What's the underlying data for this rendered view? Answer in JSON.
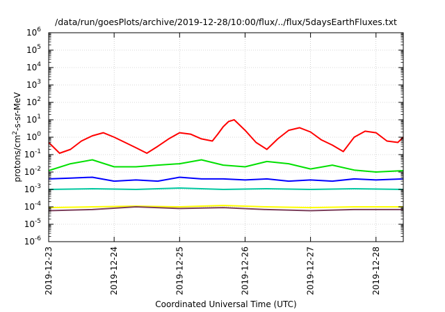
{
  "chart_data": {
    "type": "line",
    "title": "/data/run/goesPlots/archive/2019-12-28/10:00/flux/../flux/5daysEarthFluxes.txt",
    "xlabel": "Coordinated Universal Time (UTC)",
    "ylabel_base": "protons/cm",
    "ylabel_sup": "2",
    "ylabel_rest": "-s-sr-MeV",
    "yscale": "log",
    "ylim": [
      1e-06,
      1000000.0
    ],
    "xlim": [
      "2019-12-23T00:00",
      "2019-12-28T10:00"
    ],
    "grid": true,
    "y_ticks": [
      {
        "exp": "-6"
      },
      {
        "exp": "-5"
      },
      {
        "exp": "-4"
      },
      {
        "exp": "-3"
      },
      {
        "exp": "-2"
      },
      {
        "exp": "-1"
      },
      {
        "exp": "0"
      },
      {
        "exp": "1"
      },
      {
        "exp": "2"
      },
      {
        "exp": "3"
      },
      {
        "exp": "4"
      },
      {
        "exp": "5"
      },
      {
        "exp": "6"
      }
    ],
    "y_tick_base": "10",
    "x_ticks": [
      "2019-12-23",
      "2019-12-24",
      "2019-12-25",
      "2019-12-26",
      "2019-12-27",
      "2019-12-28"
    ],
    "series": [
      {
        "color": "#ff0000",
        "time_hours": [
          0,
          4,
          8,
          12,
          16,
          20,
          24,
          28,
          32,
          36,
          40,
          44,
          48,
          52,
          56,
          60,
          62,
          64,
          66,
          68,
          72,
          76,
          80,
          84,
          88,
          92,
          96,
          100,
          104,
          108,
          112,
          116,
          120,
          124,
          128,
          130
        ],
        "values": [
          0.5,
          0.12,
          0.2,
          0.6,
          1.2,
          1.8,
          1.0,
          0.5,
          0.25,
          0.12,
          0.3,
          0.8,
          1.8,
          1.5,
          0.8,
          0.6,
          1.5,
          4.0,
          8.0,
          10.0,
          2.5,
          0.5,
          0.2,
          0.8,
          2.5,
          3.5,
          2.0,
          0.7,
          0.35,
          0.15,
          1.0,
          2.2,
          1.8,
          0.6,
          0.5,
          1.0
        ]
      },
      {
        "color": "#00e000",
        "time_hours": [
          0,
          8,
          16,
          24,
          32,
          40,
          48,
          56,
          64,
          72,
          80,
          88,
          96,
          104,
          112,
          120,
          130
        ],
        "values": [
          0.012,
          0.03,
          0.05,
          0.02,
          0.02,
          0.025,
          0.03,
          0.05,
          0.025,
          0.02,
          0.04,
          0.03,
          0.015,
          0.025,
          0.013,
          0.01,
          0.012
        ]
      },
      {
        "color": "#0000ff",
        "time_hours": [
          0,
          8,
          16,
          24,
          32,
          40,
          48,
          56,
          64,
          72,
          80,
          88,
          96,
          104,
          112,
          120,
          130
        ],
        "values": [
          0.004,
          0.0045,
          0.005,
          0.003,
          0.0035,
          0.003,
          0.005,
          0.004,
          0.004,
          0.0035,
          0.004,
          0.003,
          0.0035,
          0.003,
          0.004,
          0.0035,
          0.004
        ]
      },
      {
        "color": "#00c8a0",
        "time_hours": [
          0,
          16,
          32,
          48,
          64,
          80,
          96,
          112,
          130
        ],
        "values": [
          0.001,
          0.0011,
          0.001,
          0.0012,
          0.001,
          0.0011,
          0.001,
          0.0011,
          0.001
        ]
      },
      {
        "color": "#ffff00",
        "time_hours": [
          0,
          16,
          32,
          48,
          64,
          80,
          96,
          112,
          130
        ],
        "values": [
          9e-05,
          0.0001,
          0.00011,
          0.0001,
          0.00012,
          0.0001,
          9e-05,
          0.0001,
          0.0001
        ]
      },
      {
        "color": "#7a3d5a",
        "time_hours": [
          0,
          16,
          32,
          48,
          64,
          80,
          96,
          112,
          130
        ],
        "values": [
          6e-05,
          7e-05,
          0.0001,
          8e-05,
          9e-05,
          7e-05,
          6e-05,
          7e-05,
          7e-05
        ]
      }
    ]
  }
}
